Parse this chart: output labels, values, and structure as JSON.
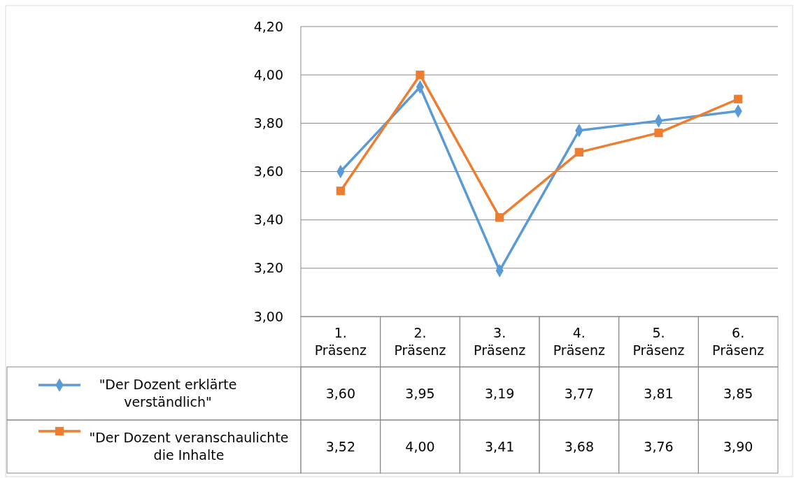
{
  "chart_data": {
    "type": "line",
    "categories": [
      "1. Präsenz",
      "2. Präsenz",
      "3. Präsenz",
      "4. Präsenz",
      "5. Präsenz",
      "6. Präsenz"
    ],
    "series": [
      {
        "name": "\"Der Dozent erklärte verständlich\"",
        "color": "#5b9bd5",
        "marker": "diamond",
        "values": [
          3.6,
          3.95,
          3.19,
          3.77,
          3.81,
          3.85
        ],
        "value_labels": [
          "3,60",
          "3,95",
          "3,19",
          "3,77",
          "3,81",
          "3,85"
        ]
      },
      {
        "name": "\"Der Dozent veranschaulichte die Inhalte",
        "color": "#ed7d31",
        "marker": "square",
        "values": [
          3.52,
          4.0,
          3.41,
          3.68,
          3.76,
          3.9
        ],
        "value_labels": [
          "3,52",
          "4,00",
          "3,41",
          "3,68",
          "3,76",
          "3,90"
        ]
      }
    ],
    "ylim": [
      3.0,
      4.2
    ],
    "yticks": [
      {
        "value": 3.0,
        "label": "3,00"
      },
      {
        "value": 3.2,
        "label": "3,20"
      },
      {
        "value": 3.4,
        "label": "3,40"
      },
      {
        "value": 3.6,
        "label": "3,60"
      },
      {
        "value": 3.8,
        "label": "3,80"
      },
      {
        "value": 4.0,
        "label": "4,00"
      },
      {
        "value": 4.2,
        "label": "4,20"
      }
    ],
    "grid": "y",
    "legend": "bottom",
    "line_style": "solid"
  }
}
